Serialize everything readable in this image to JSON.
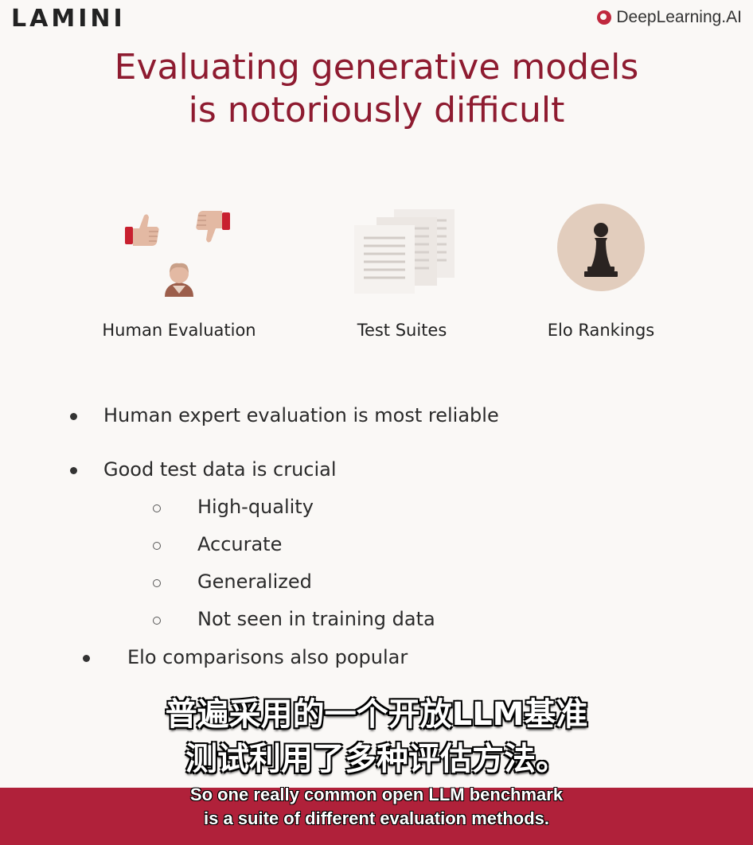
{
  "header": {
    "brand": "LAMINI",
    "partner": "DeepLearning.AI"
  },
  "slide": {
    "title_line1": "Evaluating generative models",
    "title_line2": "is notoriously difficult",
    "cards": [
      {
        "label": "Human Evaluation",
        "icon": "thumbs-and-person-icon"
      },
      {
        "label": "Test Suites",
        "icon": "documents-icon"
      },
      {
        "label": "Elo Rankings",
        "icon": "chess-pawn-icon"
      }
    ],
    "bullets": {
      "b1": "Human expert evaluation is most reliable",
      "b2": "Good test data is crucial",
      "sub1": "High-quality",
      "sub2": "Accurate",
      "sub3": "Generalized",
      "sub4": "Not seen in training data",
      "b3": "Elo comparisons also popular"
    }
  },
  "subtitles": {
    "cn_line1": "普遍采用的一个开放LLM基准",
    "cn_line2": "测试利用了多种评估方法。",
    "en_line1": "So one really common open LLM benchmark",
    "en_line2": "is a suite of different evaluation methods."
  },
  "colors": {
    "title": "#8e1b30",
    "band": "#b0213a",
    "elo_circle": "#e2cdbd"
  }
}
